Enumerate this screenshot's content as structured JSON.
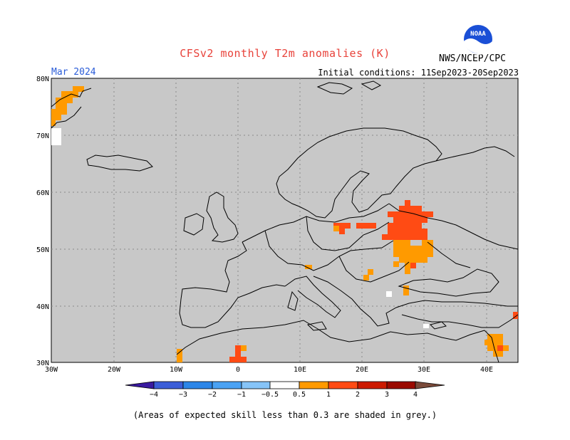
{
  "header": {
    "title": "CFSv2 monthly T2m anomalies (K)",
    "month": "Mar 2024",
    "initial_conditions": "Initial conditions: 11Sep2023-20Sep2023",
    "agency": "NWS/NCEP/CPC",
    "logo_text": "NOAA"
  },
  "map": {
    "background_color": "#c8c8c8",
    "lat_ticks": [
      "80N",
      "70N",
      "60N",
      "50N",
      "40N",
      "30N"
    ],
    "lon_ticks": [
      "30W",
      "20W",
      "10W",
      "0",
      "10E",
      "20E",
      "30E",
      "40E"
    ]
  },
  "colorbar": {
    "labels": [
      "−4",
      "−3",
      "−2",
      "−1",
      "−0.5",
      "0.5",
      "1",
      "2",
      "3",
      "4"
    ],
    "colors": [
      "#3a1aa0",
      "#3c5ed8",
      "#2c86e8",
      "#4aa2f4",
      "#86c4f8",
      "#ffffff",
      "#ff9a00",
      "#ff4b14",
      "#cc1a00",
      "#9a0a00",
      "#c09a8a",
      "#7a4a3a"
    ]
  },
  "footnote": "(Areas of expected skill less than 0.3 are shaded in grey.)"
}
